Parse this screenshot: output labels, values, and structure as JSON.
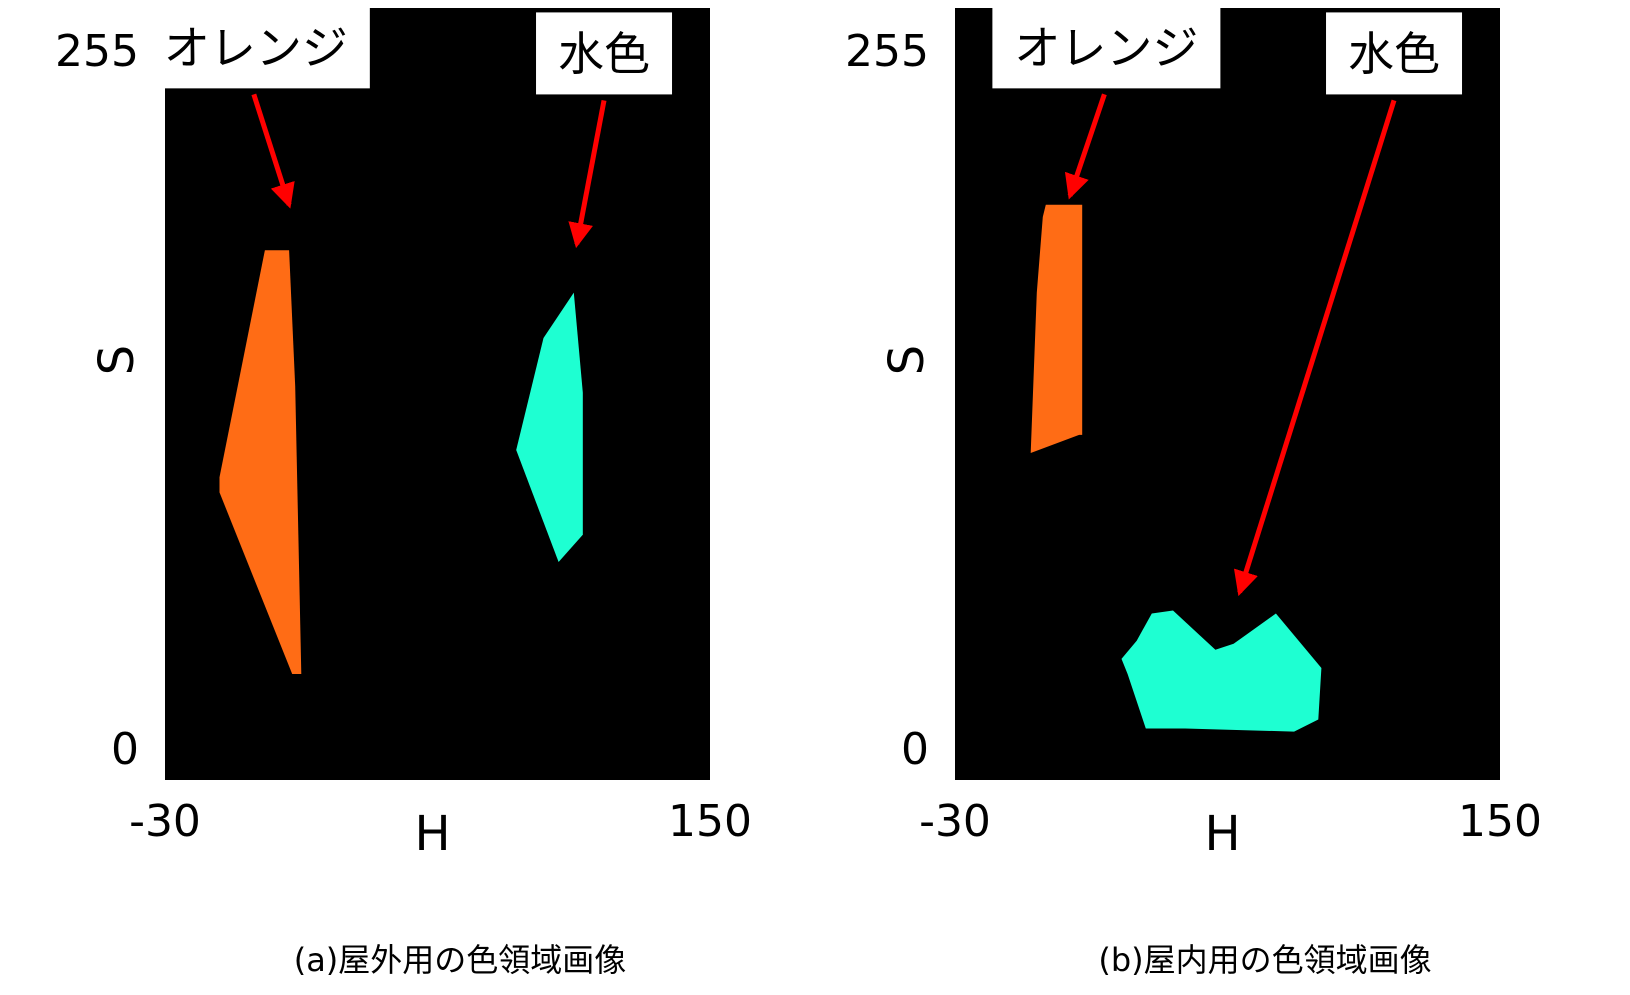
{
  "chart_data": [
    {
      "type": "scatter",
      "title": "",
      "caption": "(a)屋外用の色領域画像",
      "xlabel": "H",
      "ylabel": "S",
      "xlim": [
        -30,
        150
      ],
      "ylim": [
        0,
        255
      ],
      "x_ticks": [
        "-30",
        "150"
      ],
      "y_ticks": [
        "255",
        "0"
      ],
      "background": "#000000",
      "regions": [
        {
          "name": "オレンジ",
          "color": "#ff6c15",
          "label_anchor": [
            0,
            242
          ],
          "arrow_tip": [
            11,
            190
          ],
          "points": [
            [
              3,
              175
            ],
            [
              11,
              175
            ],
            [
              13,
              130
            ],
            [
              15,
              35
            ],
            [
              15,
              35
            ],
            [
              12,
              35
            ],
            [
              -12,
              95
            ],
            [
              -12,
              100
            ]
          ]
        },
        {
          "name": "水色",
          "color": "#1effd2",
          "label_anchor": [
            115,
            240
          ],
          "arrow_tip": [
            106,
            177
          ],
          "points": [
            [
              105,
              161
            ],
            [
              105,
              161
            ],
            [
              108,
              128
            ],
            [
              108,
              81
            ],
            [
              100,
              72
            ],
            [
              86,
              109
            ],
            [
              95,
              146
            ]
          ]
        }
      ]
    },
    {
      "type": "scatter",
      "title": "",
      "caption": "(b)屋内用の色領域画像",
      "xlabel": "H",
      "ylabel": "S",
      "xlim": [
        -30,
        150
      ],
      "ylim": [
        0,
        255
      ],
      "x_ticks": [
        "-30",
        "150"
      ],
      "y_ticks": [
        "255",
        "0"
      ],
      "background": "#000000",
      "regions": [
        {
          "name": "オレンジ",
          "color": "#ff6c15",
          "label_anchor": [
            20,
            242
          ],
          "arrow_tip": [
            8,
            193
          ],
          "points": [
            [
              0,
              190
            ],
            [
              12,
              190
            ],
            [
              12,
              114
            ],
            [
              11,
              114
            ],
            [
              -5,
              108
            ],
            [
              -5,
              108
            ],
            [
              -3,
              161
            ],
            [
              -1,
              186
            ]
          ]
        },
        {
          "name": "水色",
          "color": "#1effd2",
          "label_anchor": [
            115,
            240
          ],
          "arrow_tip": [
            64,
            62
          ],
          "points": [
            [
              35,
              55
            ],
            [
              42,
              56
            ],
            [
              56,
              43
            ],
            [
              62,
              45
            ],
            [
              76,
              55
            ],
            [
              91,
              37
            ],
            [
              90,
              20
            ],
            [
              82,
              16
            ],
            [
              46,
              17
            ],
            [
              33,
              17
            ],
            [
              27,
              35
            ],
            [
              25,
              40
            ],
            [
              30,
              46
            ]
          ]
        }
      ]
    }
  ]
}
